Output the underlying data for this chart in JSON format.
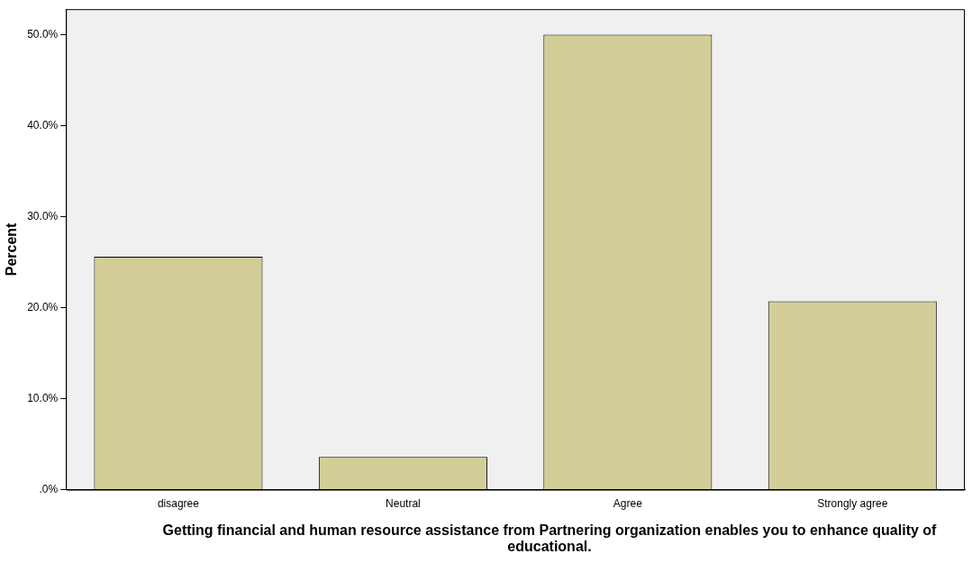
{
  "chart_data": {
    "type": "bar",
    "xlabel": "Getting financial and human resource assistance from Partnering organization enables you to enhance quality of educational.",
    "ylabel": "Percent",
    "categories": [
      "disagree",
      "Neutral",
      "Agree",
      "Strongly agree"
    ],
    "values": [
      25.6,
      3.6,
      50.0,
      20.7
    ],
    "color": "#d3ce97",
    "ylim": [
      0,
      52.8
    ],
    "yticks": [
      {
        "value": 0,
        "label": ".0%"
      },
      {
        "value": 10,
        "label": "10.0%"
      },
      {
        "value": 20,
        "label": "20.0%"
      },
      {
        "value": 30,
        "label": "30.0%"
      },
      {
        "value": 40,
        "label": "40.0%"
      },
      {
        "value": 50,
        "label": "50.0%"
      }
    ],
    "grid": false,
    "legend": false
  }
}
